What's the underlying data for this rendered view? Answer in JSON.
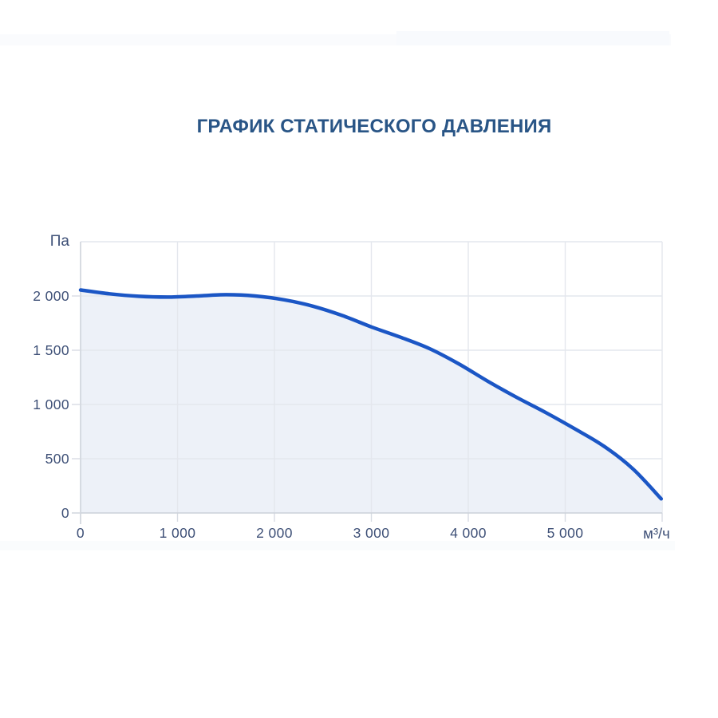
{
  "title": "ГРАФИК СТАТИЧЕСКОГО ДАВЛЕНИЯ",
  "chart_data": {
    "type": "line",
    "title": "ГРАФИК СТАТИЧЕСКОГО ДАВЛЕНИЯ",
    "xlabel": "м³/ч",
    "ylabel": "Па",
    "xlim": [
      0,
      6000
    ],
    "ylim": [
      0,
      2500
    ],
    "grid": true,
    "legend_position": "none",
    "x_ticks": [
      {
        "v": 0,
        "label": "0"
      },
      {
        "v": 1000,
        "label": "1 000"
      },
      {
        "v": 2000,
        "label": "2 000"
      },
      {
        "v": 3000,
        "label": "3 000"
      },
      {
        "v": 4000,
        "label": "4 000"
      },
      {
        "v": 5000,
        "label": "5 000"
      }
    ],
    "y_ticks": [
      {
        "v": 0,
        "label": "0"
      },
      {
        "v": 500,
        "label": "500"
      },
      {
        "v": 1000,
        "label": "1 000"
      },
      {
        "v": 1500,
        "label": "1 500"
      },
      {
        "v": 2000,
        "label": "2 000"
      }
    ],
    "x_gridlines": [
      1000,
      2000,
      3000,
      4000,
      5000,
      6000
    ],
    "y_gridlines": [
      500,
      1000,
      1500,
      2000,
      2500
    ],
    "series": [
      {
        "color": "#1b56c5",
        "fill_color": "#edf1f8",
        "x": [
          0,
          300,
          600,
          900,
          1200,
          1500,
          1800,
          2100,
          2400,
          2700,
          3000,
          3300,
          3600,
          3900,
          4200,
          4500,
          4800,
          5100,
          5400,
          5700,
          5990
        ],
        "y": [
          2055,
          2020,
          1997,
          1990,
          2000,
          2012,
          2000,
          1965,
          1905,
          1820,
          1715,
          1620,
          1515,
          1375,
          1215,
          1065,
          925,
          775,
          615,
          405,
          130
        ]
      }
    ]
  },
  "colors": {
    "title": "#295586",
    "tick_label": "#3e5077",
    "grid": "#e4e7ed",
    "axis": "#ccd1d9",
    "tick_mark": "#d8dce3",
    "line": "#1b56c5",
    "area_fill": "#edf1f8"
  }
}
